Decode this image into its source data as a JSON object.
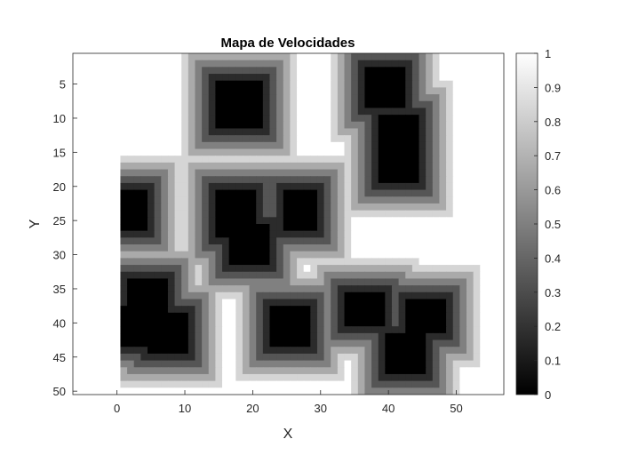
{
  "chart_data": {
    "type": "heatmap",
    "title": "Mapa de Velocidades",
    "xlabel": "X",
    "ylabel": "Y",
    "xlim": [
      -6.5,
      57
    ],
    "ylim": [
      0.5,
      50.5
    ],
    "y_reversed": true,
    "x_ticks": [
      "0",
      "10",
      "20",
      "30",
      "40",
      "50"
    ],
    "x_tick_values": [
      0,
      10,
      20,
      30,
      40,
      50
    ],
    "y_ticks": [
      "5",
      "10",
      "15",
      "20",
      "25",
      "30",
      "35",
      "40",
      "45",
      "50"
    ],
    "y_tick_values": [
      5,
      10,
      15,
      20,
      25,
      30,
      35,
      40,
      45,
      50
    ],
    "colorbar": {
      "colormap": "gray",
      "min": 0,
      "max": 1,
      "ticks": [
        "0",
        "0.1",
        "0.2",
        "0.3",
        "0.4",
        "0.5",
        "0.6",
        "0.7",
        "0.8",
        "0.9",
        "1"
      ],
      "tick_values": [
        0,
        0.1,
        0.2,
        0.3,
        0.4,
        0.5,
        0.6,
        0.7,
        0.8,
        0.9,
        1
      ]
    },
    "grid": false,
    "field": {
      "x_range": [
        1,
        55
      ],
      "y_range": [
        1,
        50
      ],
      "min_value": 0,
      "max_value": 1,
      "dark_regions": [
        {
          "x": [
            15,
            21
          ],
          "y": [
            5,
            11
          ]
        },
        {
          "x": [
            37,
            42
          ],
          "y": [
            3,
            8
          ]
        },
        {
          "x": [
            39,
            44
          ],
          "y": [
            10,
            19
          ]
        },
        {
          "x": [
            15,
            20
          ],
          "y": [
            21,
            27
          ]
        },
        {
          "x": [
            17,
            22
          ],
          "y": [
            26,
            31
          ]
        },
        {
          "x": [
            25,
            29
          ],
          "y": [
            21,
            26
          ]
        },
        {
          "x": [
            1,
            4
          ],
          "y": [
            21,
            26
          ]
        },
        {
          "x": [
            2,
            7
          ],
          "y": [
            34,
            39
          ]
        },
        {
          "x": [
            1,
            5
          ],
          "y": [
            38,
            43
          ]
        },
        {
          "x": [
            5,
            10
          ],
          "y": [
            39,
            44
          ]
        },
        {
          "x": [
            23,
            28
          ],
          "y": [
            38,
            43
          ]
        },
        {
          "x": [
            34,
            39
          ],
          "y": [
            36,
            40
          ]
        },
        {
          "x": [
            43,
            48
          ],
          "y": [
            37,
            41
          ]
        },
        {
          "x": [
            40,
            45
          ],
          "y": [
            42,
            47
          ]
        }
      ]
    }
  }
}
